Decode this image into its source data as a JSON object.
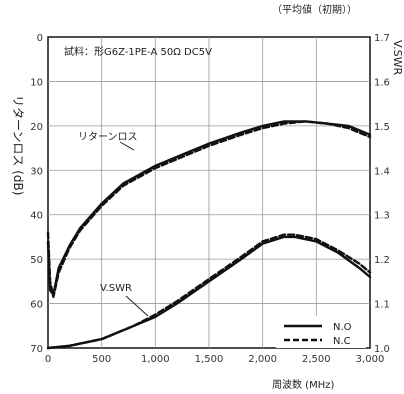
{
  "chart_data": {
    "type": "line",
    "subtitle": "試料：形G6Z-1PE-A 50Ω DC5V",
    "note_top_right": "（平均値（初期））",
    "xlabel": "周波数 (MHz)",
    "ylabel_left": "リターンロス (dB)",
    "ylabel_right": "V.SWR",
    "xlim": [
      0,
      3000
    ],
    "ylim_left": [
      0,
      70
    ],
    "ylim_left_inverted": true,
    "ylim_right": [
      1.0,
      1.7
    ],
    "x_ticks": [
      "0",
      "500",
      "1,000",
      "1,500",
      "2,000",
      "2,500",
      "3,000"
    ],
    "y_left_ticks": [
      "0",
      "10",
      "20",
      "30",
      "40",
      "50",
      "60",
      "70"
    ],
    "y_right_ticks": [
      "1.7",
      "1.6",
      "1.5",
      "1.4",
      "1.3",
      "1.2",
      "1.1",
      "1.0"
    ],
    "grid": true,
    "legend": {
      "position": "bottom-right",
      "entries": [
        "N.O",
        "N.C"
      ]
    },
    "annotations": [
      "リターンロス",
      "V.SWR"
    ],
    "series": [
      {
        "name": "N.O",
        "axis": "left",
        "style": "solid",
        "x": [
          0,
          20,
          50,
          100,
          200,
          300,
          500,
          700,
          1000,
          1300,
          1500,
          1800,
          2000,
          2200,
          2400,
          2600,
          2800,
          3000
        ],
        "values": [
          46,
          57,
          58,
          52,
          47,
          43,
          37.5,
          33,
          29,
          26,
          24,
          21.5,
          20,
          19,
          19,
          19.5,
          20,
          22
        ]
      },
      {
        "name": "N.C",
        "axis": "left",
        "style": "dashed",
        "x": [
          0,
          20,
          50,
          100,
          200,
          300,
          500,
          700,
          1000,
          1300,
          1500,
          1800,
          2000,
          2200,
          2400,
          2600,
          2800,
          3000
        ],
        "values": [
          44,
          55,
          58.5,
          53,
          47.5,
          43.5,
          38,
          33.5,
          29.5,
          26.5,
          24.5,
          22,
          20.5,
          19.5,
          19,
          19.5,
          20.5,
          22.5
        ]
      },
      {
        "name": "N.O",
        "axis": "right",
        "style": "solid",
        "x": [
          0,
          200,
          500,
          800,
          1000,
          1200,
          1500,
          1800,
          2000,
          2200,
          2300,
          2500,
          2700,
          2900,
          3000
        ],
        "values": [
          1.0,
          1.005,
          1.02,
          1.05,
          1.07,
          1.1,
          1.15,
          1.2,
          1.235,
          1.25,
          1.25,
          1.24,
          1.215,
          1.18,
          1.16
        ]
      },
      {
        "name": "N.C",
        "axis": "right",
        "style": "dashed",
        "x": [
          0,
          200,
          500,
          800,
          1000,
          1200,
          1500,
          1800,
          2000,
          2200,
          2300,
          2500,
          2700,
          2900,
          3000
        ],
        "values": [
          1.0,
          1.005,
          1.02,
          1.05,
          1.075,
          1.105,
          1.155,
          1.205,
          1.24,
          1.255,
          1.255,
          1.245,
          1.22,
          1.19,
          1.17
        ]
      }
    ]
  }
}
